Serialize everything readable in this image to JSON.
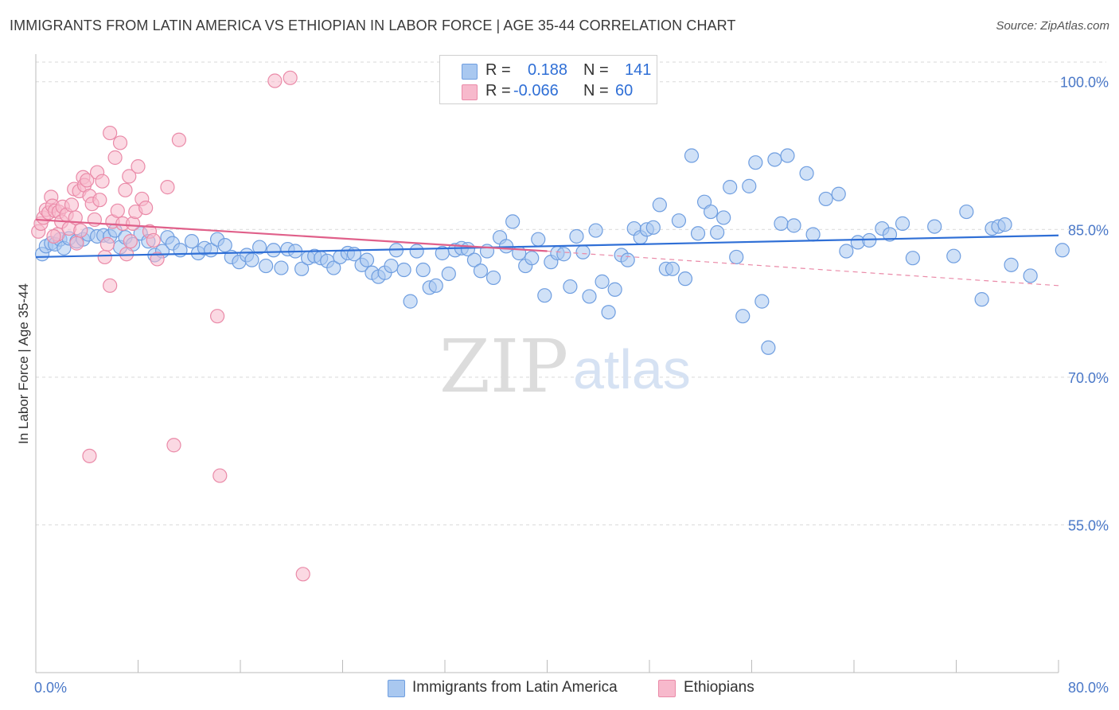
{
  "title": "IMMIGRANTS FROM LATIN AMERICA VS ETHIOPIAN IN LABOR FORCE | AGE 35-44 CORRELATION CHART",
  "source": "Source: ZipAtlas.com",
  "watermark": {
    "zip": "ZIP",
    "atlas": "atlas"
  },
  "legend_stats": [
    {
      "r_label": "R =",
      "r_value": "0.188",
      "n_label": "N =",
      "n_value": "141",
      "color": "#a9c8f0",
      "border": "#6f9ee0"
    },
    {
      "r_label": "R =",
      "r_value": "-0.066",
      "n_label": "N =",
      "n_value": "60",
      "color": "#f7b9cc",
      "border": "#ea8aa8"
    }
  ],
  "legend_bottom": [
    {
      "label": "Immigrants from Latin America",
      "color": "#a9c8f0",
      "border": "#6f9ee0"
    },
    {
      "label": "Ethiopians",
      "color": "#f7b9cc",
      "border": "#ea8aa8"
    }
  ],
  "chart_data": {
    "type": "scatter",
    "title": "IMMIGRANTS FROM LATIN AMERICA VS ETHIOPIAN IN LABOR FORCE | AGE 35-44 CORRELATION CHART",
    "xlabel": "",
    "ylabel": "In Labor Force | Age 35-44",
    "xlim": [
      0,
      80
    ],
    "ylim": [
      40,
      102
    ],
    "x_tick_labels": [
      "0.0%",
      "80.0%"
    ],
    "y_ticks": [
      55,
      70,
      85,
      100
    ],
    "y_tick_labels": [
      "55.0%",
      "70.0%",
      "85.0%",
      "100.0%"
    ],
    "grid": true,
    "legend_position": "top-center",
    "series": [
      {
        "name": "Immigrants from Latin America",
        "color": "#6f9ee0",
        "fill": "#a9c8f0",
        "trend": {
          "x": [
            0,
            80
          ],
          "y": [
            82.2,
            84.4
          ],
          "color": "#2f6fd6"
        },
        "points": [
          [
            0.5,
            82.5
          ],
          [
            0.8,
            83.3
          ],
          [
            1.2,
            83.6
          ],
          [
            1.5,
            83.5
          ],
          [
            1.9,
            84.0
          ],
          [
            2.2,
            83.1
          ],
          [
            2.6,
            84.1
          ],
          [
            3.2,
            83.8
          ],
          [
            3.7,
            84.0
          ],
          [
            4.1,
            84.5
          ],
          [
            4.8,
            84.3
          ],
          [
            5.3,
            84.4
          ],
          [
            5.8,
            84.3
          ],
          [
            6.2,
            84.9
          ],
          [
            6.6,
            83.2
          ],
          [
            7.0,
            84.2
          ],
          [
            7.6,
            83.5
          ],
          [
            8.2,
            84.6
          ],
          [
            8.8,
            83.8
          ],
          [
            9.3,
            82.4
          ],
          [
            9.9,
            82.8
          ],
          [
            10.3,
            84.2
          ],
          [
            10.7,
            83.6
          ],
          [
            11.3,
            82.9
          ],
          [
            12.2,
            83.8
          ],
          [
            12.7,
            82.6
          ],
          [
            13.2,
            83.1
          ],
          [
            13.7,
            82.9
          ],
          [
            14.2,
            84.0
          ],
          [
            14.8,
            83.4
          ],
          [
            15.3,
            82.2
          ],
          [
            15.9,
            81.7
          ],
          [
            16.5,
            82.4
          ],
          [
            16.9,
            81.9
          ],
          [
            17.5,
            83.2
          ],
          [
            18.0,
            81.3
          ],
          [
            18.6,
            82.9
          ],
          [
            19.2,
            81.1
          ],
          [
            19.7,
            83.0
          ],
          [
            20.3,
            82.8
          ],
          [
            20.8,
            81.0
          ],
          [
            21.3,
            82.1
          ],
          [
            21.8,
            82.3
          ],
          [
            22.3,
            82.1
          ],
          [
            22.8,
            81.8
          ],
          [
            23.3,
            81.1
          ],
          [
            23.8,
            82.2
          ],
          [
            24.4,
            82.6
          ],
          [
            24.9,
            82.5
          ],
          [
            25.5,
            81.4
          ],
          [
            25.9,
            81.9
          ],
          [
            26.3,
            80.6
          ],
          [
            26.8,
            80.2
          ],
          [
            27.3,
            80.6
          ],
          [
            27.8,
            81.3
          ],
          [
            28.2,
            82.9
          ],
          [
            28.8,
            80.9
          ],
          [
            29.3,
            77.7
          ],
          [
            29.8,
            82.8
          ],
          [
            30.3,
            80.9
          ],
          [
            30.8,
            79.1
          ],
          [
            31.3,
            79.3
          ],
          [
            31.8,
            82.6
          ],
          [
            32.3,
            80.5
          ],
          [
            32.8,
            82.9
          ],
          [
            33.3,
            83.1
          ],
          [
            33.8,
            83.0
          ],
          [
            34.3,
            81.9
          ],
          [
            34.8,
            80.8
          ],
          [
            35.3,
            82.8
          ],
          [
            35.8,
            80.1
          ],
          [
            36.3,
            84.2
          ],
          [
            36.8,
            83.3
          ],
          [
            37.3,
            85.8
          ],
          [
            37.8,
            82.6
          ],
          [
            38.3,
            81.3
          ],
          [
            38.8,
            82.1
          ],
          [
            39.3,
            84.0
          ],
          [
            39.8,
            78.3
          ],
          [
            40.3,
            81.7
          ],
          [
            40.8,
            82.6
          ],
          [
            41.3,
            82.5
          ],
          [
            41.8,
            79.2
          ],
          [
            42.3,
            84.3
          ],
          [
            42.8,
            82.7
          ],
          [
            43.3,
            78.2
          ],
          [
            43.8,
            84.9
          ],
          [
            44.3,
            79.7
          ],
          [
            44.8,
            76.6
          ],
          [
            45.3,
            78.9
          ],
          [
            45.8,
            82.4
          ],
          [
            46.3,
            81.9
          ],
          [
            46.8,
            85.1
          ],
          [
            47.3,
            84.2
          ],
          [
            47.8,
            85.0
          ],
          [
            48.3,
            85.2
          ],
          [
            48.8,
            87.5
          ],
          [
            49.3,
            81.0
          ],
          [
            49.8,
            81.0
          ],
          [
            50.3,
            85.9
          ],
          [
            50.8,
            80.0
          ],
          [
            51.3,
            92.5
          ],
          [
            51.8,
            84.6
          ],
          [
            52.3,
            87.8
          ],
          [
            52.8,
            86.8
          ],
          [
            53.3,
            84.7
          ],
          [
            53.8,
            86.2
          ],
          [
            54.3,
            89.3
          ],
          [
            54.8,
            82.2
          ],
          [
            55.3,
            76.2
          ],
          [
            55.8,
            89.4
          ],
          [
            56.3,
            91.8
          ],
          [
            56.8,
            77.7
          ],
          [
            57.3,
            73.0
          ],
          [
            57.8,
            92.1
          ],
          [
            58.3,
            85.6
          ],
          [
            58.8,
            92.5
          ],
          [
            59.3,
            85.4
          ],
          [
            60.3,
            90.7
          ],
          [
            60.8,
            84.5
          ],
          [
            61.8,
            88.1
          ],
          [
            62.8,
            88.6
          ],
          [
            63.4,
            82.8
          ],
          [
            64.3,
            83.7
          ],
          [
            65.2,
            83.9
          ],
          [
            66.2,
            85.1
          ],
          [
            66.8,
            84.5
          ],
          [
            67.8,
            85.6
          ],
          [
            68.6,
            82.1
          ],
          [
            70.3,
            85.3
          ],
          [
            71.8,
            82.3
          ],
          [
            72.8,
            86.8
          ],
          [
            74.0,
            77.9
          ],
          [
            74.8,
            85.1
          ],
          [
            75.3,
            85.3
          ],
          [
            75.8,
            85.5
          ],
          [
            76.3,
            81.4
          ],
          [
            77.8,
            80.3
          ],
          [
            80.3,
            82.9
          ]
        ]
      },
      {
        "name": "Ethiopians",
        "color": "#ea8aa8",
        "fill": "#f7b9cc",
        "trend": {
          "x": [
            0,
            40
          ],
          "y": [
            86.0,
            82.8
          ],
          "color": "#e0608a"
        },
        "trend_extension": {
          "x": [
            40,
            80
          ],
          "y": [
            82.8,
            79.3
          ],
          "dashed": true
        },
        "points": [
          [
            0.2,
            84.8
          ],
          [
            0.4,
            85.6
          ],
          [
            0.6,
            86.2
          ],
          [
            0.8,
            87.0
          ],
          [
            1.0,
            86.7
          ],
          [
            1.2,
            88.3
          ],
          [
            1.3,
            87.4
          ],
          [
            1.5,
            86.9
          ],
          [
            1.7,
            84.5
          ],
          [
            1.8,
            86.8
          ],
          [
            2.0,
            85.8
          ],
          [
            2.1,
            87.3
          ],
          [
            2.4,
            86.5
          ],
          [
            2.6,
            85.1
          ],
          [
            2.8,
            87.5
          ],
          [
            3.0,
            89.1
          ],
          [
            3.2,
            83.6
          ],
          [
            3.4,
            88.9
          ],
          [
            3.5,
            84.9
          ],
          [
            3.7,
            90.3
          ],
          [
            3.8,
            89.5
          ],
          [
            4.0,
            90.0
          ],
          [
            4.2,
            88.4
          ],
          [
            4.4,
            87.6
          ],
          [
            4.6,
            86.0
          ],
          [
            4.8,
            90.8
          ],
          [
            5.0,
            88.0
          ],
          [
            5.2,
            89.9
          ],
          [
            5.4,
            82.2
          ],
          [
            5.6,
            83.5
          ],
          [
            5.8,
            94.8
          ],
          [
            6.0,
            85.8
          ],
          [
            6.2,
            92.3
          ],
          [
            6.4,
            86.9
          ],
          [
            6.6,
            93.8
          ],
          [
            6.8,
            85.6
          ],
          [
            7.0,
            89.0
          ],
          [
            7.1,
            82.5
          ],
          [
            7.3,
            90.4
          ],
          [
            7.4,
            83.8
          ],
          [
            7.6,
            85.6
          ],
          [
            7.8,
            86.8
          ],
          [
            8.0,
            91.4
          ],
          [
            8.3,
            88.1
          ],
          [
            8.6,
            87.2
          ],
          [
            8.9,
            84.8
          ],
          [
            9.2,
            83.9
          ],
          [
            10.3,
            89.3
          ],
          [
            11.2,
            94.1
          ],
          [
            14.2,
            76.2
          ],
          [
            18.7,
            100.1
          ],
          [
            19.9,
            100.4
          ],
          [
            5.8,
            79.3
          ],
          [
            9.5,
            82.0
          ],
          [
            4.2,
            62.0
          ],
          [
            10.8,
            63.1
          ],
          [
            14.4,
            60.0
          ],
          [
            20.9,
            50.0
          ],
          [
            1.4,
            84.3
          ],
          [
            3.1,
            86.2
          ]
        ]
      }
    ]
  }
}
